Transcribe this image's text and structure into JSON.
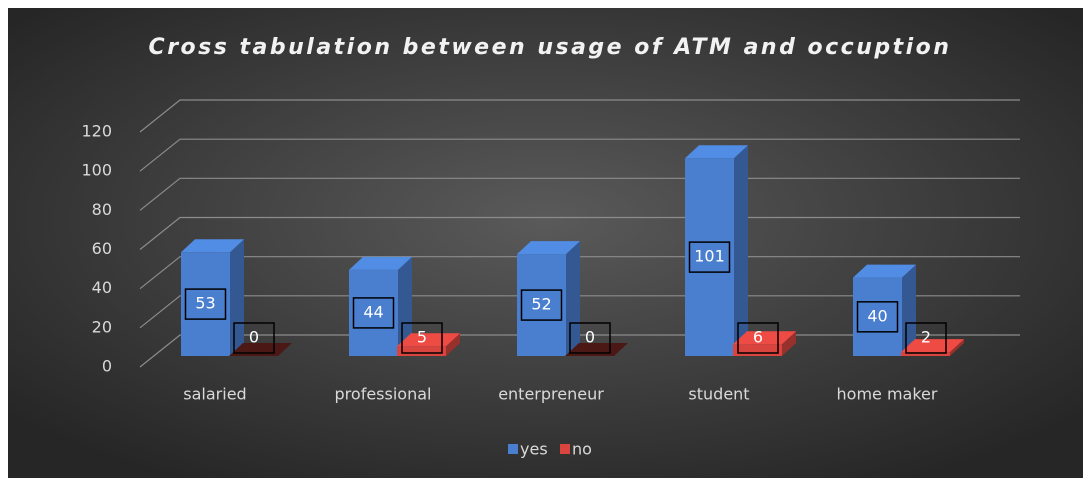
{
  "chart_data": {
    "type": "bar3d",
    "title": "Cross tabulation between usage of ATM and occuption",
    "categories": [
      "salaried",
      "professional",
      "enterpreneur",
      "student",
      "home maker"
    ],
    "series": [
      {
        "name": "yes",
        "color": "#4a7fd0",
        "values": [
          53,
          44,
          52,
          101,
          40
        ]
      },
      {
        "name": "no",
        "color": "#d9443f",
        "values": [
          0,
          5,
          0,
          6,
          2
        ]
      }
    ],
    "ylim": [
      0,
      120
    ],
    "yticks": [
      0,
      20,
      40,
      60,
      80,
      100,
      120
    ],
    "grid": true,
    "legend": "bottom"
  }
}
